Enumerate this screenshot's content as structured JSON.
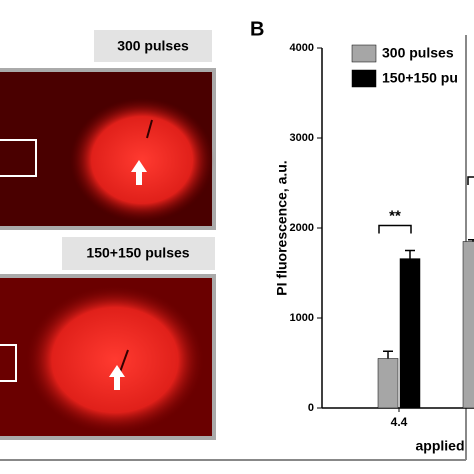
{
  "panels": {
    "top_label": "300 pulses",
    "bottom_label": "150+150 pulses",
    "panel_letter": "B"
  },
  "chart_data": {
    "type": "bar",
    "y_label": "PI fluorescence, a.u.",
    "x_label": "applied",
    "categories": [
      "4.4",
      null
    ],
    "series": [
      {
        "name": "300 pulses",
        "color": "#a6a6a6",
        "values": [
          550,
          1850
        ],
        "errors": [
          80,
          20
        ]
      },
      {
        "name": "150+150 pu",
        "color": "#000000",
        "values": [
          1660,
          null
        ],
        "errors": [
          90,
          null
        ]
      }
    ],
    "annotations": [
      "**"
    ],
    "ylim": [
      0,
      4000
    ],
    "yticks": [
      0,
      1000,
      2000,
      3000,
      4000
    ]
  }
}
